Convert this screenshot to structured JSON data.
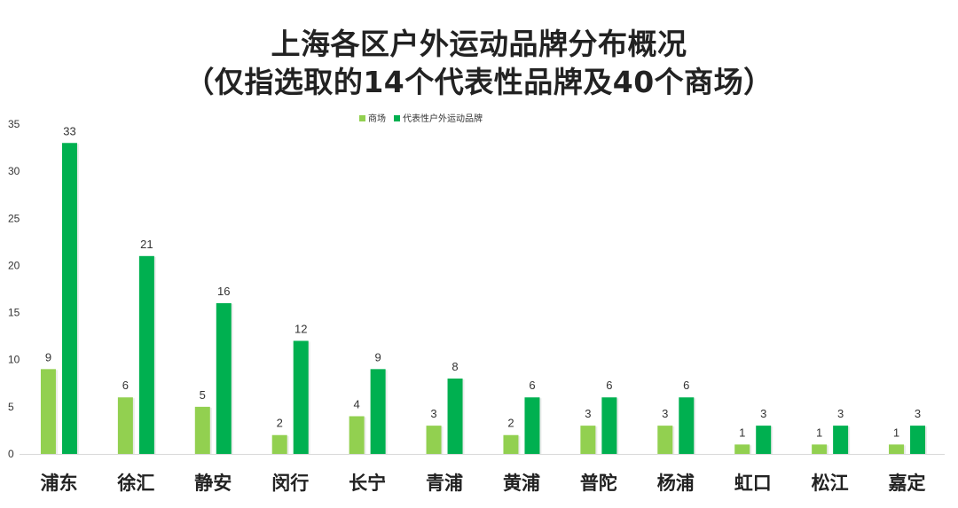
{
  "chart_data": {
    "type": "bar",
    "title": "上海各区户外运动品牌分布概况",
    "subtitle": "（仅指选取的14个代表性品牌及40个商场）",
    "xlabel": "",
    "ylabel": "",
    "categories": [
      "浦东",
      "徐汇",
      "静安",
      "闵行",
      "长宁",
      "青浦",
      "黄浦",
      "普陀",
      "杨浦",
      "虹口",
      "松江",
      "嘉定"
    ],
    "series": [
      {
        "name": "商场",
        "color": "#92d050",
        "values": [
          9,
          6,
          5,
          2,
          4,
          3,
          2,
          3,
          3,
          1,
          1,
          1
        ]
      },
      {
        "name": "代表性户外运动品牌",
        "color": "#00b050",
        "values": [
          33,
          21,
          16,
          12,
          9,
          8,
          6,
          6,
          6,
          3,
          3,
          3
        ]
      }
    ],
    "ylim": [
      0,
      35
    ],
    "yticks": [
      0,
      5,
      10,
      15,
      20,
      25,
      30,
      35
    ],
    "grid": false,
    "legend": "top-center"
  }
}
